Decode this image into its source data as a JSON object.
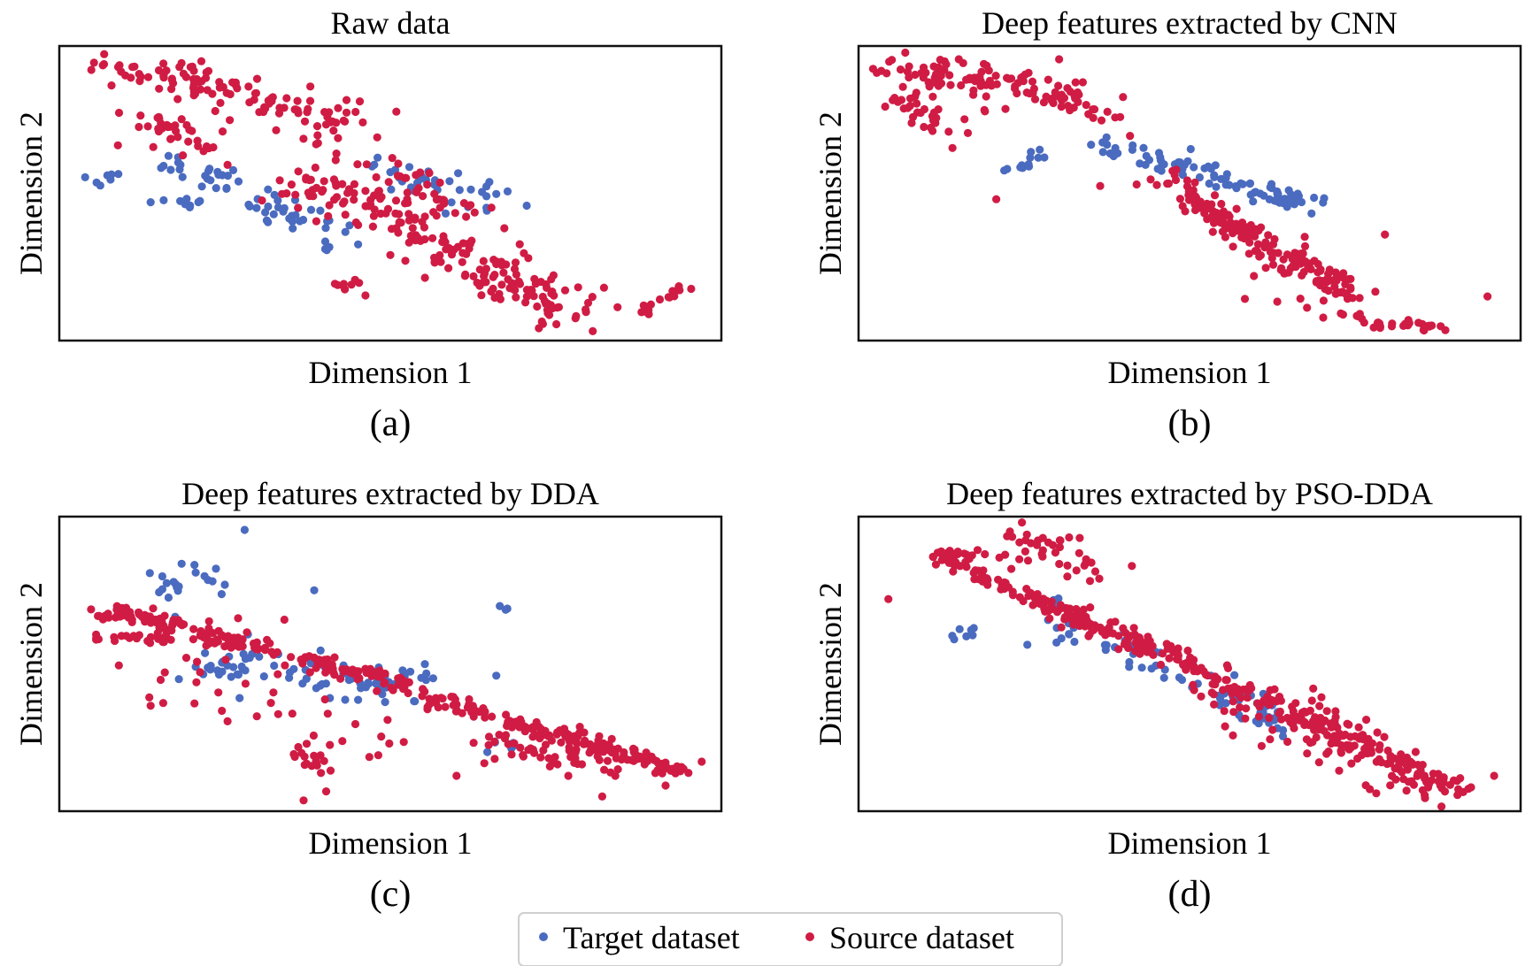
{
  "legend": {
    "placement": "bottom-center",
    "entries": [
      {
        "label": "Target dataset",
        "color": "#4a6bbf"
      },
      {
        "label": "Source dataset",
        "color": "#d01c44"
      }
    ]
  },
  "chart_data": [
    {
      "type": "scatter",
      "title": "Raw data",
      "xlabel": "Dimension 1",
      "ylabel": "Dimension 2",
      "caption": "(a)",
      "xlim": [
        0,
        100
      ],
      "ylim": [
        0,
        100
      ],
      "ticks": false,
      "grid": false,
      "series": [
        {
          "name": "Target dataset",
          "color": "#4a6bbf",
          "segments": [
            {
              "from": [
                4.6,
                54.5
              ],
              "to": [
                9.2,
                57.0
              ],
              "n": 7,
              "spread": 1.8
            },
            {
              "from": [
                13.2,
                46.5
              ],
              "to": [
                22.3,
                46.2
              ],
              "n": 9,
              "spread": 0.9
            },
            {
              "from": [
                16.5,
                63.0
              ],
              "to": [
                26.5,
                53.0
              ],
              "n": 24,
              "spread": 2.6
            },
            {
              "from": [
                29.5,
                47.5
              ],
              "to": [
                43.5,
                35.0
              ],
              "n": 36,
              "spread": 3.0
            },
            {
              "from": [
                48.5,
                58.5
              ],
              "to": [
                66.5,
                45.5
              ],
              "n": 36,
              "spread": 3.4
            }
          ]
        },
        {
          "name": "Source dataset",
          "color": "#d01c44",
          "segments": [
            {
              "from": [
                4.3,
                93.5
              ],
              "to": [
                21.5,
                89.0
              ],
              "n": 40,
              "spread": 2.4
            },
            {
              "from": [
                20.0,
                88.0
              ],
              "to": [
                46.0,
                73.0
              ],
              "n": 70,
              "spread": 3.6
            },
            {
              "from": [
                11.5,
                75.0
              ],
              "to": [
                24.5,
                65.0
              ],
              "n": 36,
              "spread": 3.2
            },
            {
              "from": [
                35.0,
                54.0
              ],
              "to": [
                56.0,
                36.0
              ],
              "n": 80,
              "spread": 4.2
            },
            {
              "from": [
                49.0,
                60.5
              ],
              "to": [
                64.0,
                38.0
              ],
              "n": 36,
              "spread": 3.2
            },
            {
              "from": [
                54.5,
                36.0
              ],
              "to": [
                67.0,
                21.0
              ],
              "n": 50,
              "spread": 4.2
            },
            {
              "from": [
                64.0,
                23.0
              ],
              "to": [
                80.5,
                8.0
              ],
              "n": 70,
              "spread": 4.2
            },
            {
              "from": [
                42.0,
                20.0
              ],
              "to": [
                46.0,
                17.0
              ],
              "n": 9,
              "spread": 1.2
            },
            {
              "from": [
                88.0,
                10.0
              ],
              "to": [
                95.5,
                19.0
              ],
              "n": 16,
              "spread": 0.9
            },
            {
              "from": [
                36.0,
                75.0
              ],
              "to": [
                46.0,
                60.0
              ],
              "n": 10,
              "spread": 6.0
            }
          ]
        }
      ]
    },
    {
      "type": "scatter",
      "title": "Deep features extracted by CNN",
      "xlabel": "Dimension 1",
      "ylabel": "Dimension 2",
      "caption": "(b)",
      "xlim": [
        0,
        100
      ],
      "ylim": [
        0,
        100
      ],
      "ticks": false,
      "grid": false,
      "series": [
        {
          "name": "Target dataset",
          "color": "#4a6bbf",
          "segments": [
            {
              "from": [
                22.0,
                58.5
              ],
              "to": [
                29.0,
                64.0
              ],
              "n": 12,
              "spread": 1.2
            },
            {
              "from": [
                35.5,
                66.5
              ],
              "to": [
                66.5,
                48.0
              ],
              "n": 70,
              "spread": 1.9
            },
            {
              "from": [
                62.0,
                50.0
              ],
              "to": [
                70.0,
                47.0
              ],
              "n": 24,
              "spread": 2.0
            }
          ]
        },
        {
          "name": "Source dataset",
          "color": "#d01c44",
          "segments": [
            {
              "from": [
                4.5,
                92.0
              ],
              "to": [
                21.5,
                88.0
              ],
              "n": 55,
              "spread": 2.8
            },
            {
              "from": [
                5.5,
                84.0
              ],
              "to": [
                16.5,
                72.0
              ],
              "n": 36,
              "spread": 3.5
            },
            {
              "from": [
                19.0,
                90.0
              ],
              "to": [
                38.0,
                78.0
              ],
              "n": 55,
              "spread": 2.8
            },
            {
              "from": [
                45.0,
                57.0
              ],
              "to": [
                58.0,
                37.0
              ],
              "n": 30,
              "spread": 1.6
            },
            {
              "from": [
                47.5,
                53.0
              ],
              "to": [
                73.5,
                18.0
              ],
              "n": 75,
              "spread": 2.2
            },
            {
              "from": [
                50.0,
                46.0
              ],
              "to": [
                77.0,
                13.0
              ],
              "n": 75,
              "spread": 2.4
            },
            {
              "from": [
                73.0,
                8.0
              ],
              "to": [
                89.0,
                4.0
              ],
              "n": 30,
              "spread": 1.2
            },
            {
              "from": [
                60.0,
                22.0
              ],
              "to": [
                72.0,
                12.0
              ],
              "n": 8,
              "spread": 3.5
            }
          ],
          "points": [
            [
              20.8,
              48.0
            ],
            [
              30.3,
              95.5
            ],
            [
              41.0,
              69.5
            ],
            [
              36.5,
              52.5
            ],
            [
              55.0,
              37.0
            ],
            [
              79.5,
              36.0
            ],
            [
              95.0,
              15.0
            ],
            [
              42.0,
              53.0
            ],
            [
              48.0,
              58.0
            ]
          ]
        }
      ]
    },
    {
      "type": "scatter",
      "title": "Deep features extracted by DDA",
      "xlabel": "Dimension 1",
      "ylabel": "Dimension 2",
      "caption": "(c)",
      "xlim": [
        0,
        100
      ],
      "ylim": [
        0,
        100
      ],
      "ticks": false,
      "grid": false,
      "series": [
        {
          "name": "Target dataset",
          "color": "#4a6bbf",
          "segments": [
            {
              "from": [
                14.0,
                75.0
              ],
              "to": [
                25.5,
                82.0
              ],
              "n": 20,
              "spread": 2.6
            },
            {
              "from": [
                21.0,
                51.0
              ],
              "to": [
                55.0,
                42.0
              ],
              "n": 90,
              "spread": 3.6
            },
            {
              "from": [
                66.5,
                69.0
              ],
              "to": [
                68.0,
                68.0
              ],
              "n": 3,
              "spread": 0.6
            },
            {
              "from": [
                64.0,
                23.0
              ],
              "to": [
                69.0,
                22.0
              ],
              "n": 6,
              "spread": 1.2
            }
          ],
          "points": [
            [
              28.0,
              95.5
            ],
            [
              38.5,
              75.0
            ],
            [
              66.0,
              46.0
            ],
            [
              17.5,
              66.0
            ]
          ]
        },
        {
          "name": "Source dataset",
          "color": "#d01c44",
          "segments": [
            {
              "from": [
                5.5,
                64.5
              ],
              "to": [
                10.0,
                68.0
              ],
              "n": 20,
              "spread": 1.0
            },
            {
              "from": [
                5.5,
                59.0
              ],
              "to": [
                20.5,
                58.5
              ],
              "n": 26,
              "spread": 1.0
            },
            {
              "from": [
                10.0,
                67.0
              ],
              "to": [
                52.0,
                43.0
              ],
              "n": 160,
              "spread": 1.6
            },
            {
              "from": [
                53.0,
                41.0
              ],
              "to": [
                95.5,
                12.5
              ],
              "n": 140,
              "spread": 1.4
            },
            {
              "from": [
                65.0,
                25.0
              ],
              "to": [
                90.0,
                14.0
              ],
              "n": 70,
              "spread": 4.5
            },
            {
              "from": [
                16.0,
                45.0
              ],
              "to": [
                52.0,
                22.0
              ],
              "n": 40,
              "spread": 7.0
            },
            {
              "from": [
                35.0,
                23.0
              ],
              "to": [
                40.0,
                13.0
              ],
              "n": 14,
              "spread": 1.2
            }
          ],
          "points": [
            [
              4.8,
              68.5
            ],
            [
              9.0,
              49.5
            ],
            [
              11.0,
              65.0
            ],
            [
              27.0,
              65.5
            ],
            [
              34.0,
              65.0
            ],
            [
              33.0,
              46.5
            ],
            [
              60.0,
              12.0
            ],
            [
              82.0,
              5.0
            ]
          ]
        }
      ]
    },
    {
      "type": "scatter",
      "title": "Deep features extracted by PSO-DDA",
      "xlabel": "Dimension 1",
      "ylabel": "Dimension 2",
      "caption": "(d)",
      "xlim": [
        0,
        100
      ],
      "ylim": [
        0,
        100
      ],
      "ticks": false,
      "grid": false,
      "series": [
        {
          "name": "Target dataset",
          "color": "#4a6bbf",
          "segments": [
            {
              "from": [
                14.5,
                58.5
              ],
              "to": [
                19.0,
                62.0
              ],
              "n": 7,
              "spread": 1.4
            },
            {
              "from": [
                29.0,
                70.0
              ],
              "to": [
                32.0,
                58.0
              ],
              "n": 14,
              "spread": 2.2
            },
            {
              "from": [
                38.0,
                58.0
              ],
              "to": [
                66.0,
                28.0
              ],
              "n": 60,
              "spread": 2.6
            }
          ],
          "points": [
            [
              25.5,
              56.5
            ]
          ]
        },
        {
          "name": "Source dataset",
          "color": "#d01c44",
          "segments": [
            {
              "from": [
                12.0,
                86.0
              ],
              "to": [
                17.0,
                88.0
              ],
              "n": 22,
              "spread": 1.2
            },
            {
              "from": [
                15.0,
                84.0
              ],
              "to": [
                32.0,
                66.0
              ],
              "n": 70,
              "spread": 1.4
            },
            {
              "from": [
                31.0,
                67.0
              ],
              "to": [
                43.0,
                56.0
              ],
              "n": 65,
              "spread": 2.2
            },
            {
              "from": [
                43.0,
                56.0
              ],
              "to": [
                92.0,
                6.0
              ],
              "n": 170,
              "spread": 1.6
            },
            {
              "from": [
                52.0,
                43.0
              ],
              "to": [
                88.0,
                6.0
              ],
              "n": 90,
              "spread": 3.4
            },
            {
              "from": [
                23.0,
                95.0
              ],
              "to": [
                37.0,
                82.0
              ],
              "n": 36,
              "spread": 2.8
            },
            {
              "from": [
                18.0,
                86.0
              ],
              "to": [
                26.0,
                86.0
              ],
              "n": 6,
              "spread": 1.2
            },
            {
              "from": [
                66.0,
                37.0
              ],
              "to": [
                78.0,
                25.0
              ],
              "n": 30,
              "spread": 3.2
            }
          ],
          "points": [
            [
              4.5,
              72.0
            ],
            [
              96.0,
              12.0
            ]
          ]
        }
      ]
    }
  ]
}
